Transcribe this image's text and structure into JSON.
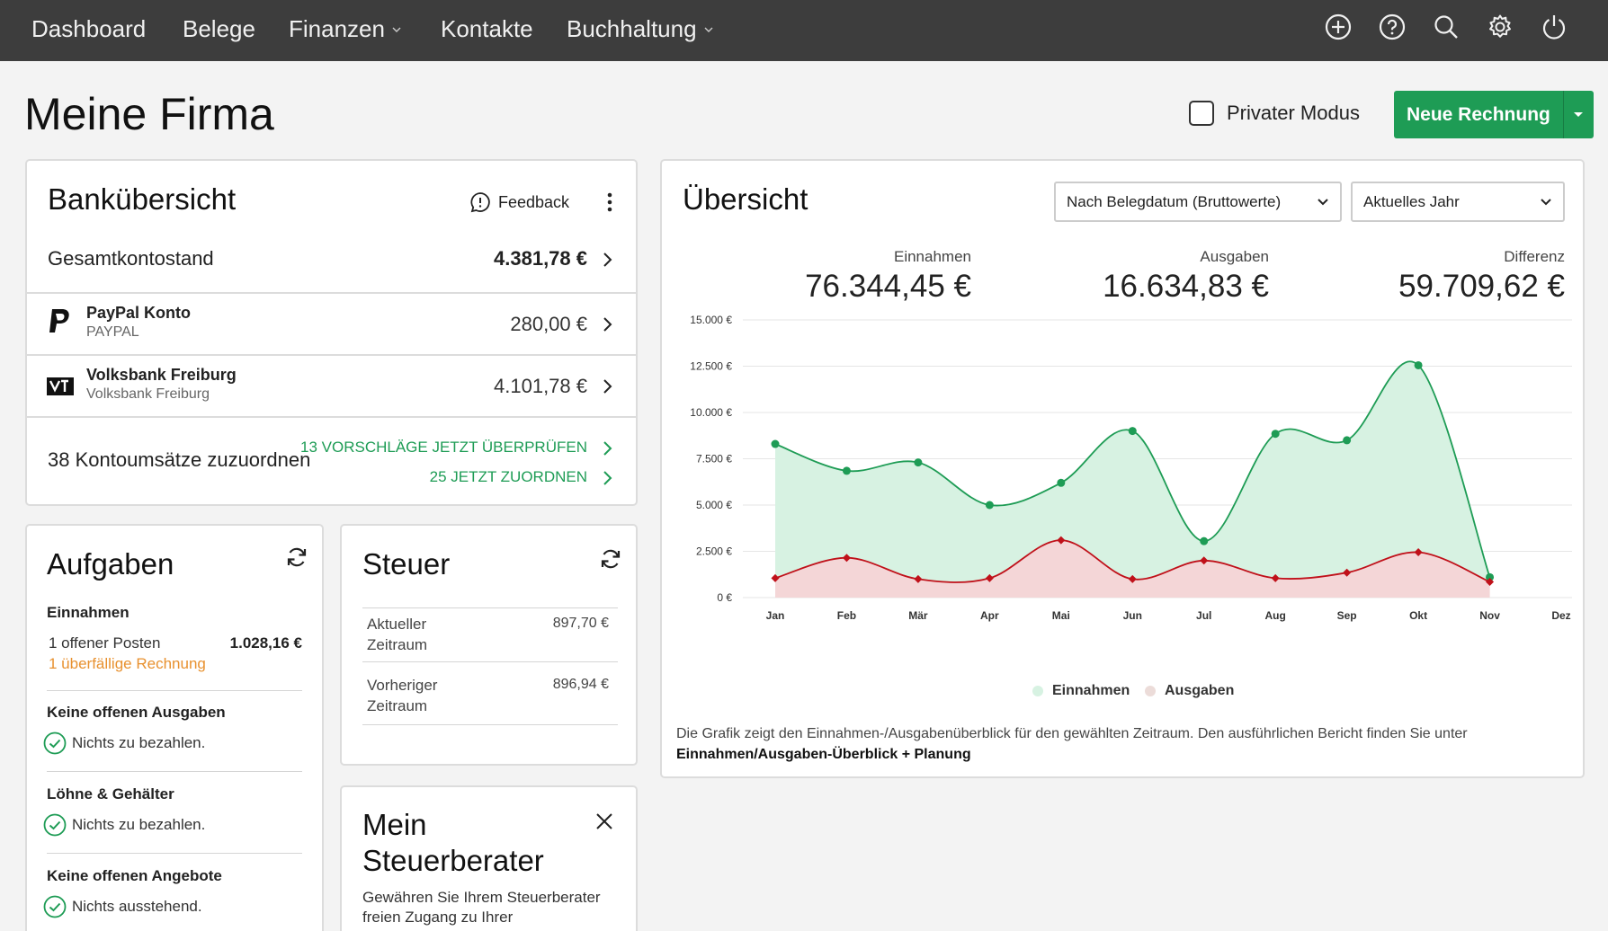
{
  "nav": {
    "items": [
      {
        "label": "Dashboard"
      },
      {
        "label": "Belege"
      },
      {
        "label": "Finanzen"
      },
      {
        "label": "Kontakte"
      },
      {
        "label": "Buchhaltung"
      }
    ]
  },
  "header": {
    "title": "Meine Firma",
    "private_mode": "Privater Modus",
    "new_invoice": "Neue Rechnung"
  },
  "bank": {
    "title": "Bankübersicht",
    "feedback": "Feedback",
    "total_label": "Gesamtkontostand",
    "total_value": "4.381,78 €",
    "accounts": [
      {
        "name": "PayPal Konto",
        "sub": "PAYPAL",
        "value": "280,00 €"
      },
      {
        "name": "Volksbank Freiburg",
        "sub": "Volksbank Freiburg",
        "value": "4.101,78 €"
      }
    ],
    "open_label": "38 Kontoumsätze zuzuordnen",
    "link_review": "13 VORSCHLÄGE JETZT ÜBERPRÜFEN",
    "link_assign": "25 JETZT ZUORDNEN"
  },
  "tasks": {
    "title": "Aufgaben",
    "income_head": "Einnahmen",
    "open_items": "1 offener Posten",
    "open_amount": "1.028,16 €",
    "overdue": "1 überfällige Rechnung",
    "expenses_head": "Keine offenen Ausgaben",
    "expenses_text": "Nichts zu bezahlen.",
    "wages_head": "Löhne & Gehälter",
    "wages_text": "Nichts zu bezahlen.",
    "offers_head": "Keine offenen Angebote",
    "offers_text": "Nichts ausstehend."
  },
  "tax": {
    "title": "Steuer",
    "current_label": "Aktueller Zeitraum",
    "current_value": "897,70 €",
    "previous_label": "Vorheriger Zeitraum",
    "previous_value": "896,94 €"
  },
  "advisor": {
    "title": "Mein Steuerberater",
    "text": "Gewähren Sie Ihrem Steuerberater freien Zugang zu Ihrer Buchhaltungssoftware und geben Sie"
  },
  "overview": {
    "title": "Übersicht",
    "select_date": "Nach Belegdatum (Bruttowerte)",
    "select_period": "Aktuelles Jahr",
    "income_label": "Einnahmen",
    "income_value": "76.344,45 €",
    "expense_label": "Ausgaben",
    "expense_value": "16.634,83 €",
    "diff_label": "Differenz",
    "diff_value": "59.709,62 €",
    "desc": "Die Grafik zeigt den Einnahmen-/Ausgabenüberblick für den gewählten Zeitraum. Den ausführlichen Bericht finden Sie unter",
    "desc_link": "Einnahmen/Ausgaben-Überblick + Planung"
  },
  "colors": {
    "income_line": "#1e9c55",
    "income_fill": "#d7f2e2",
    "expense_line": "#c0111a",
    "expense_fill": "#f7d3d6",
    "brand": "#1e9c55"
  },
  "chart_data": {
    "type": "area",
    "categories": [
      "Jan",
      "Feb",
      "Mär",
      "Apr",
      "Mai",
      "Jun",
      "Jul",
      "Aug",
      "Sep",
      "Okt",
      "Nov",
      "Dez"
    ],
    "series": [
      {
        "name": "Einnahmen",
        "values": [
          8300,
          6850,
          7300,
          5000,
          6200,
          9000,
          3050,
          8850,
          8500,
          12550,
          1100,
          null
        ]
      },
      {
        "name": "Ausgaben",
        "values": [
          1050,
          2150,
          1000,
          1050,
          3100,
          1000,
          2000,
          1050,
          1350,
          2450,
          850,
          null
        ]
      }
    ],
    "ylim": [
      0,
      15000
    ],
    "yticks": [
      0,
      2500,
      5000,
      7500,
      10000,
      12500,
      15000
    ],
    "ytick_labels": [
      "0 €",
      "2.500 €",
      "5.000 €",
      "7.500 €",
      "10.000 €",
      "12.500 €",
      "15.000 €"
    ],
    "grid": true,
    "legend": "bottom-center"
  }
}
